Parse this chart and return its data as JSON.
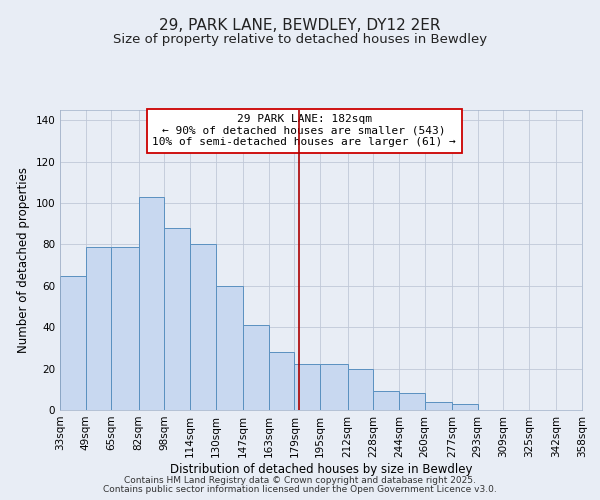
{
  "title": "29, PARK LANE, BEWDLEY, DY12 2ER",
  "subtitle": "Size of property relative to detached houses in Bewdley",
  "xlabel": "Distribution of detached houses by size in Bewdley",
  "ylabel": "Number of detached properties",
  "bin_edges": [
    33,
    49,
    65,
    82,
    98,
    114,
    130,
    147,
    163,
    179,
    195,
    212,
    228,
    244,
    260,
    277,
    293,
    309,
    325,
    342,
    358
  ],
  "bin_labels": [
    "33sqm",
    "49sqm",
    "65sqm",
    "82sqm",
    "98sqm",
    "114sqm",
    "130sqm",
    "147sqm",
    "163sqm",
    "179sqm",
    "195sqm",
    "212sqm",
    "228sqm",
    "244sqm",
    "260sqm",
    "277sqm",
    "293sqm",
    "309sqm",
    "325sqm",
    "342sqm",
    "358sqm"
  ],
  "counts": [
    65,
    79,
    79,
    103,
    88,
    80,
    60,
    41,
    28,
    22,
    22,
    20,
    9,
    8,
    4,
    3,
    0,
    0,
    0,
    0
  ],
  "bar_facecolor": "#c8d8f0",
  "bar_edgecolor": "#5a90c0",
  "vline_x": 182,
  "vline_color": "#aa0000",
  "annotation_box_text": "29 PARK LANE: 182sqm\n← 90% of detached houses are smaller (543)\n10% of semi-detached houses are larger (61) →",
  "annotation_box_edgecolor": "#cc0000",
  "annotation_box_facecolor": "#ffffff",
  "ylim": [
    0,
    145
  ],
  "yticks": [
    0,
    20,
    40,
    60,
    80,
    100,
    120,
    140
  ],
  "grid_color": "#c0c8d8",
  "background_color": "#e8edf5",
  "footer_line1": "Contains HM Land Registry data © Crown copyright and database right 2025.",
  "footer_line2": "Contains public sector information licensed under the Open Government Licence v3.0.",
  "title_fontsize": 11,
  "subtitle_fontsize": 9.5,
  "axis_label_fontsize": 8.5,
  "tick_fontsize": 7.5,
  "annotation_fontsize": 8,
  "footer_fontsize": 6.5
}
